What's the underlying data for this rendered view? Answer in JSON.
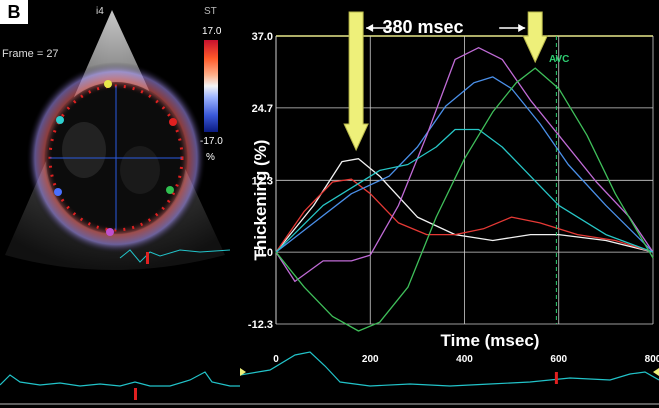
{
  "panel": {
    "letter": "B",
    "view_label": "i4",
    "frame_label": "Frame = 27",
    "colorbar": {
      "title": "ST",
      "max_label": "17.0",
      "min_label": "-17.0",
      "unit": "%"
    }
  },
  "colors": {
    "white": "#f2f2f2",
    "red": "#e53935",
    "blue": "#4a8fe8",
    "magenta": "#c06bd6",
    "cyan": "#27c6c6",
    "green": "#3fbf5a",
    "arrow": "#eef07a",
    "avc": "#2ecc71",
    "ecg": "#22c3c9"
  },
  "annotations": {
    "interval_label": "380 msec",
    "avc_label": "AVC"
  },
  "chart_data": {
    "type": "line",
    "title": "",
    "xlabel": "Time (msec)",
    "ylabel": "Thickening (%)",
    "xlim": [
      0,
      800
    ],
    "ylim": [
      -12.3,
      37.0
    ],
    "x_ticks": [
      "0",
      "200",
      "400",
      "600",
      "800"
    ],
    "y_ticks": [
      "37.0",
      "24.7",
      "12.3",
      "0.0",
      "-12.3"
    ],
    "avc_time": 595,
    "arrow_times": [
      170,
      550
    ],
    "series": [
      {
        "color_key": "white",
        "points": [
          [
            0,
            0
          ],
          [
            80,
            8
          ],
          [
            140,
            15.5
          ],
          [
            175,
            16
          ],
          [
            220,
            13
          ],
          [
            300,
            6
          ],
          [
            380,
            3
          ],
          [
            460,
            2
          ],
          [
            540,
            3
          ],
          [
            600,
            3
          ],
          [
            700,
            2
          ],
          [
            800,
            0
          ]
        ]
      },
      {
        "color_key": "red",
        "points": [
          [
            0,
            0
          ],
          [
            60,
            7
          ],
          [
            120,
            12
          ],
          [
            160,
            12.5
          ],
          [
            200,
            10
          ],
          [
            260,
            5
          ],
          [
            320,
            3
          ],
          [
            380,
            3
          ],
          [
            440,
            4
          ],
          [
            500,
            6
          ],
          [
            560,
            5
          ],
          [
            640,
            3
          ],
          [
            720,
            2
          ],
          [
            800,
            0
          ]
        ]
      },
      {
        "color_key": "blue",
        "points": [
          [
            0,
            0
          ],
          [
            80,
            5
          ],
          [
            160,
            10
          ],
          [
            240,
            13
          ],
          [
            300,
            18
          ],
          [
            360,
            25
          ],
          [
            420,
            29
          ],
          [
            460,
            30
          ],
          [
            500,
            28
          ],
          [
            560,
            22
          ],
          [
            620,
            15
          ],
          [
            700,
            8
          ],
          [
            800,
            0
          ]
        ]
      },
      {
        "color_key": "magenta",
        "points": [
          [
            0,
            0
          ],
          [
            40,
            -5
          ],
          [
            100,
            -1.5
          ],
          [
            160,
            -1.5
          ],
          [
            200,
            -0.5
          ],
          [
            260,
            8
          ],
          [
            320,
            20
          ],
          [
            380,
            33
          ],
          [
            430,
            35
          ],
          [
            480,
            33
          ],
          [
            540,
            26
          ],
          [
            600,
            20
          ],
          [
            680,
            12
          ],
          [
            750,
            6
          ],
          [
            800,
            0
          ]
        ]
      },
      {
        "color_key": "cyan",
        "points": [
          [
            0,
            0
          ],
          [
            100,
            8
          ],
          [
            160,
            11
          ],
          [
            220,
            14
          ],
          [
            280,
            15
          ],
          [
            340,
            18
          ],
          [
            380,
            21
          ],
          [
            430,
            21
          ],
          [
            480,
            18
          ],
          [
            540,
            13
          ],
          [
            600,
            8
          ],
          [
            700,
            3
          ],
          [
            800,
            0
          ]
        ]
      },
      {
        "color_key": "green",
        "points": [
          [
            0,
            0
          ],
          [
            60,
            -6
          ],
          [
            120,
            -11
          ],
          [
            175,
            -13.5
          ],
          [
            220,
            -12
          ],
          [
            280,
            -6
          ],
          [
            340,
            6
          ],
          [
            400,
            16
          ],
          [
            460,
            24
          ],
          [
            510,
            29
          ],
          [
            550,
            31.5
          ],
          [
            600,
            28
          ],
          [
            660,
            20
          ],
          [
            720,
            10
          ],
          [
            800,
            -1
          ]
        ]
      }
    ]
  }
}
